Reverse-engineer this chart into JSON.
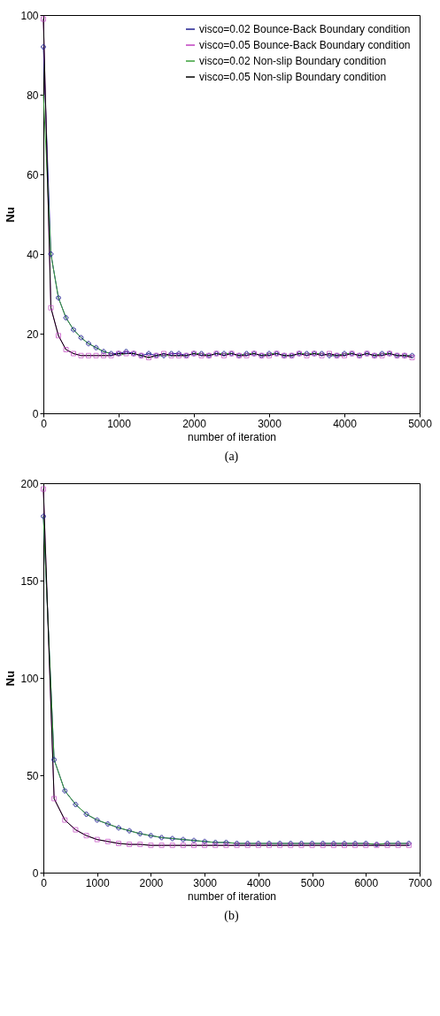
{
  "chart_data": [
    {
      "type": "line",
      "title": "(a)",
      "xlabel": "number of iteration",
      "ylabel": "Nu",
      "xlim": [
        0,
        5000
      ],
      "ylim": [
        0,
        100
      ],
      "xticks": [
        0,
        1000,
        2000,
        3000,
        4000,
        5000
      ],
      "yticks": [
        0,
        20,
        40,
        60,
        80,
        100
      ],
      "grid": false,
      "legend": "top right",
      "x": [
        0,
        100,
        200,
        300,
        400,
        500,
        600,
        700,
        800,
        900,
        1000,
        1100,
        1200,
        1300,
        1400,
        1500,
        1600,
        1700,
        1800,
        1900,
        2000,
        2100,
        2200,
        2300,
        2400,
        2500,
        2600,
        2700,
        2800,
        2900,
        3000,
        3100,
        3200,
        3300,
        3400,
        3500,
        3600,
        3700,
        3800,
        3900,
        4000,
        4100,
        4200,
        4300,
        4400,
        4500,
        4600,
        4700,
        4800,
        4900
      ],
      "series": [
        {
          "name": "visco=0.02 Bounce-Back Boundary condition",
          "color": "#1f1f8f",
          "marker": "cross",
          "values": [
            92,
            40,
            29,
            24,
            21,
            19,
            17.5,
            16.5,
            15.5,
            15,
            15,
            15.5,
            15,
            14.5,
            15,
            14.5,
            14.5,
            15,
            15,
            14.5,
            15,
            15,
            14.5,
            15,
            15,
            15,
            14.5,
            15,
            15,
            14.5,
            15,
            15,
            14.5,
            14.5,
            15,
            15,
            15,
            15,
            14.5,
            14.5,
            15,
            15,
            14.5,
            15,
            14.5,
            15,
            15,
            14.5,
            14.5,
            14.5
          ]
        },
        {
          "name": "visco=0.05 Bounce-Back Boundary condition",
          "color": "#c040c0",
          "marker": "square",
          "values": [
            99,
            26.5,
            19.5,
            16,
            15,
            14.5,
            14.5,
            14.5,
            14.5,
            14.5,
            15,
            15,
            15,
            14.5,
            14,
            14.5,
            15,
            14.5,
            14.5,
            14.5,
            15,
            14.5,
            14.5,
            15,
            14.5,
            15,
            14.5,
            14.5,
            15,
            14.5,
            14.5,
            15,
            14.5,
            14.5,
            15,
            14.5,
            15,
            14.5,
            15,
            14.5,
            14.5,
            15,
            14.5,
            15,
            14.5,
            14.5,
            15,
            14.5,
            14.5,
            14
          ]
        },
        {
          "name": "visco=0.02 Non-slip Boundary condition",
          "color": "#3aa03a",
          "marker": "none",
          "values": [
            80,
            40,
            29,
            24,
            21,
            19,
            17.5,
            16.5,
            15.5,
            15,
            14.5,
            15,
            15,
            14.5,
            14,
            14.5,
            14.5,
            14.5,
            14.5,
            14.5,
            15,
            15,
            14.5,
            15,
            15,
            15,
            14.5,
            15,
            15,
            14.5,
            15,
            15,
            14.5,
            14.5,
            15,
            15,
            15,
            15,
            14.5,
            14.5,
            15,
            15,
            14.5,
            15,
            14.5,
            15,
            15,
            14.5,
            14.5,
            14.5
          ]
        },
        {
          "name": "visco=0.05 Non-slip Boundary condition",
          "color": "#000000",
          "marker": "none",
          "values": [
            99,
            26.5,
            19.5,
            16,
            15,
            14.5,
            14.5,
            14.5,
            14.5,
            14.5,
            15,
            15,
            15,
            14.5,
            14,
            14.5,
            15,
            14.5,
            14.5,
            14.5,
            15,
            14.5,
            14.5,
            15,
            14.5,
            15,
            14.5,
            14.5,
            15,
            14.5,
            14.5,
            15,
            14.5,
            14.5,
            15,
            14.5,
            15,
            14.5,
            15,
            14.5,
            14.5,
            15,
            14.5,
            15,
            14.5,
            14.5,
            15,
            14.5,
            14.5,
            14
          ]
        }
      ]
    },
    {
      "type": "line",
      "title": "(b)",
      "xlabel": "number of iteration",
      "ylabel": "Nu",
      "xlim": [
        0,
        7000
      ],
      "ylim": [
        0,
        200
      ],
      "xticks": [
        0,
        1000,
        2000,
        3000,
        4000,
        5000,
        6000,
        7000
      ],
      "yticks": [
        0,
        50,
        100,
        150,
        200
      ],
      "grid": false,
      "legend": "top right",
      "x": [
        0,
        200,
        400,
        600,
        800,
        1000,
        1200,
        1400,
        1600,
        1800,
        2000,
        2200,
        2400,
        2600,
        2800,
        3000,
        3200,
        3400,
        3600,
        3800,
        4000,
        4200,
        4400,
        4600,
        4800,
        5000,
        5200,
        5400,
        5600,
        5800,
        6000,
        6200,
        6400,
        6600,
        6800
      ],
      "series": [
        {
          "name": "visco=0.02 Bounce-Back Boundary condition",
          "color": "#1f1f8f",
          "marker": "cross",
          "values": [
            183,
            58,
            42,
            35,
            30,
            27,
            25,
            23,
            21.5,
            20,
            19,
            18,
            17.5,
            17,
            16.5,
            16,
            15.5,
            15.5,
            15,
            15,
            15,
            15,
            15,
            15,
            15,
            15,
            15,
            15,
            15,
            15,
            15,
            14.5,
            15,
            15,
            15
          ]
        },
        {
          "name": "visco=0.05 Bounce-Back Boundary condition",
          "color": "#c040c0",
          "marker": "square",
          "values": [
            197,
            38,
            27,
            22,
            19,
            17,
            16,
            15,
            14.5,
            14.5,
            14,
            14,
            14,
            14,
            14,
            14,
            14,
            14,
            14,
            14,
            14,
            14,
            14,
            14,
            14,
            14,
            14,
            14,
            14,
            14,
            14,
            14,
            14,
            14,
            14
          ]
        },
        {
          "name": "visco=0.02 Non-slip Boundary condition",
          "color": "#3aa03a",
          "marker": "none",
          "values": [
            183,
            58,
            42,
            35,
            30,
            27,
            25,
            23,
            21.5,
            20,
            19,
            18,
            17.5,
            17,
            16.5,
            16,
            15.5,
            15.5,
            15,
            15,
            15,
            15,
            15,
            15,
            15,
            15,
            15,
            15,
            15,
            15,
            15,
            14.5,
            15,
            15,
            15
          ]
        },
        {
          "name": "visco=0.05 Non-slip Boundary condition",
          "color": "#000000",
          "marker": "none",
          "values": [
            197,
            38,
            27,
            22,
            19,
            17,
            16,
            15,
            14.5,
            14.5,
            14,
            14,
            14,
            14,
            14,
            14,
            14,
            14,
            14,
            14,
            14,
            14,
            14,
            14,
            14,
            14,
            14,
            14,
            14,
            14,
            14,
            14,
            14,
            14,
            14
          ]
        }
      ]
    }
  ]
}
